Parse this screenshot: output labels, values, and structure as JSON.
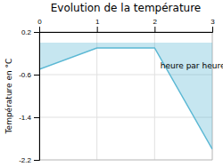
{
  "chart_data": {
    "type": "area",
    "title": "Evolution de la température",
    "ylabel": "Température en °C",
    "x": [
      0,
      1,
      2,
      3
    ],
    "y": [
      -0.5,
      -0.1,
      -0.1,
      -2.0
    ],
    "color": "#5bb8d4",
    "xlim": [
      0,
      3
    ],
    "ylim": [
      -2.2,
      0.2
    ],
    "xticks": [
      0,
      1,
      2,
      3
    ],
    "yticks": [
      0.2,
      -0.6,
      -1.4,
      -2.2
    ],
    "grid": true,
    "annotations": [
      {
        "text": "heure par heure",
        "x": 2.1,
        "y": -0.38
      }
    ]
  }
}
